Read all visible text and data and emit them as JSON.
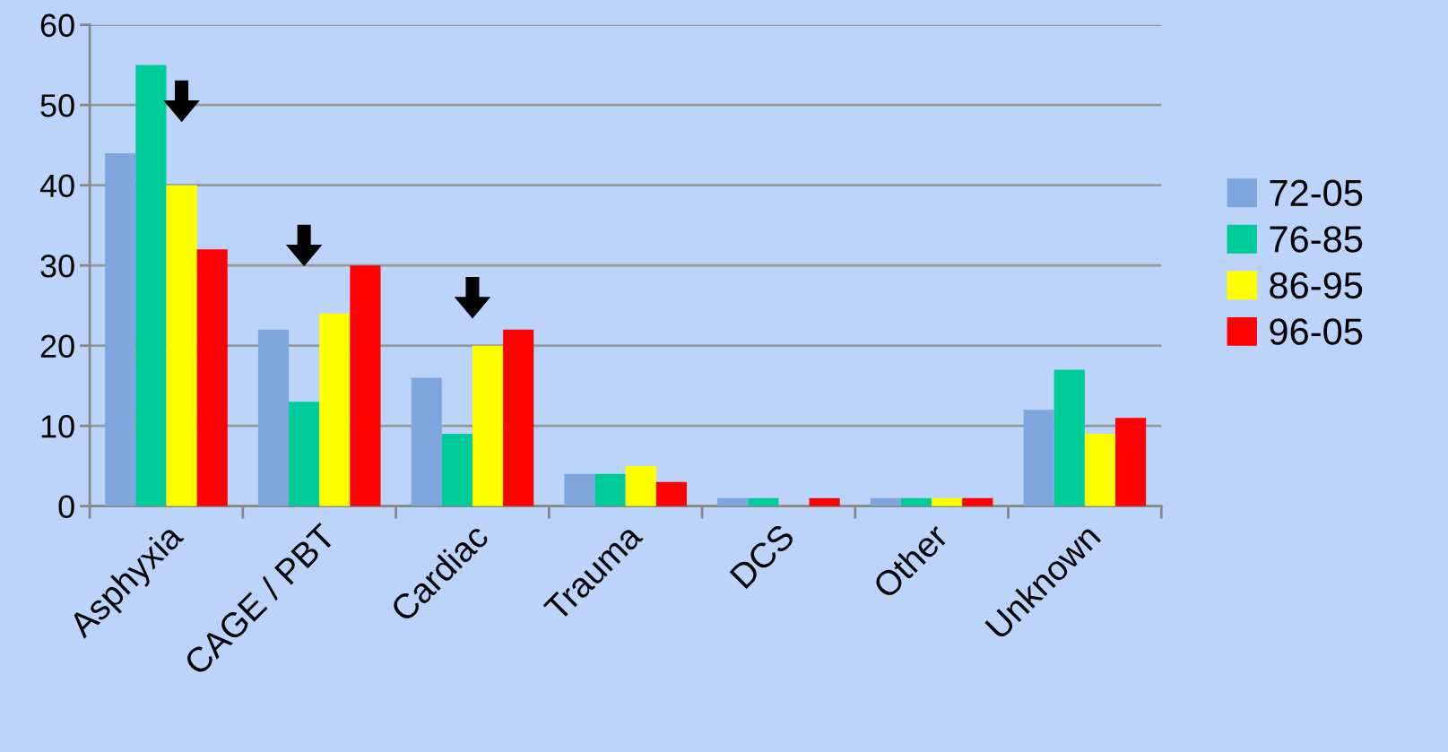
{
  "chart_data": {
    "type": "bar",
    "categories": [
      "Asphyxia",
      "CAGE / PBT",
      "Cardiac",
      "Trauma",
      "DCS",
      "Other",
      "Unknown"
    ],
    "series": [
      {
        "name": "72-05",
        "color": "#7fa6dc",
        "values": [
          44,
          22,
          16,
          4,
          1,
          1,
          12
        ]
      },
      {
        "name": "76-85",
        "color": "#00cc99",
        "values": [
          55,
          13,
          9,
          4,
          1,
          1,
          17
        ]
      },
      {
        "name": "86-95",
        "color": "#ffff00",
        "values": [
          40,
          24,
          20,
          5,
          0,
          1,
          9
        ]
      },
      {
        "name": "96-05",
        "color": "#ff0000",
        "values": [
          32,
          30,
          22,
          3,
          1,
          1,
          11
        ]
      }
    ],
    "ylim": [
      0,
      60
    ],
    "yticks": [
      0,
      10,
      20,
      30,
      40,
      50,
      60
    ],
    "grid": "y",
    "legend": "right"
  }
}
